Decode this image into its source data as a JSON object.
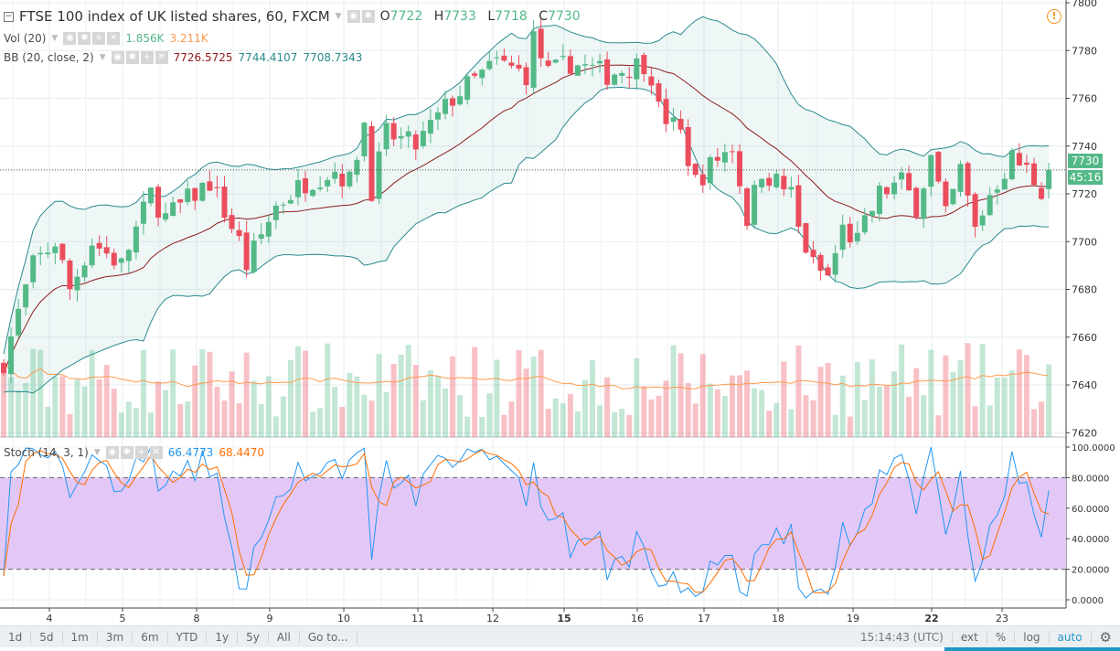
{
  "header": {
    "symbol_title": "FTSE 100 index of UK listed shares, 60, FXCM",
    "open_label": "O",
    "open": "7722",
    "high_label": "H",
    "high": "7733",
    "low_label": "L",
    "low": "7718",
    "close_label": "C",
    "close": "7730"
  },
  "indicators": {
    "vol": {
      "label": "Vol (20)",
      "value1": "1.856K",
      "value2": "3.211K"
    },
    "bb": {
      "label": "BB (20, close, 2)",
      "basis": "7726.5725",
      "upper": "7744.4107",
      "lower": "7708.7343"
    },
    "stoch": {
      "label": "Stoch (14, 3, 1)",
      "k": "66.4773",
      "d": "68.4470"
    }
  },
  "price_axis": {
    "labels": [
      "7800",
      "7780",
      "7760",
      "7740",
      "7720",
      "7700",
      "7680",
      "7660",
      "7640",
      "7620"
    ],
    "last_price": "7730",
    "countdown": "45:16"
  },
  "stoch_axis": {
    "labels": [
      "100.0000",
      "80.0000",
      "60.0000",
      "40.0000",
      "20.0000",
      "0.0000"
    ]
  },
  "time_axis": {
    "labels": [
      {
        "t": "4"
      },
      {
        "t": "5"
      },
      {
        "t": "8"
      },
      {
        "t": "9"
      },
      {
        "t": "10"
      },
      {
        "t": "11"
      },
      {
        "t": "12"
      },
      {
        "t": "15",
        "bold": true
      },
      {
        "t": "16"
      },
      {
        "t": "17"
      },
      {
        "t": "18"
      },
      {
        "t": "19"
      },
      {
        "t": "22",
        "bold": true
      },
      {
        "t": "23"
      }
    ]
  },
  "toolbar": {
    "ranges": [
      "1d",
      "5d",
      "1m",
      "3m",
      "6m",
      "YTD",
      "1y",
      "5y",
      "All"
    ],
    "goto": "Go to...",
    "clock": "15:14:43 (UTC)",
    "ext": "ext",
    "percent": "%",
    "log": "log",
    "auto": "auto"
  },
  "colors": {
    "up": "#53b987",
    "down": "#eb4d5c",
    "bb_line": "#2a8a8f",
    "bb_basis": "#8e1c1c",
    "stoch_k": "#2196f3",
    "stoch_d": "#ff6d00",
    "stoch_band": "#e3c8f7",
    "accent": "#2196c8"
  },
  "chart_data": {
    "type": "candlestick",
    "timeframe": "60",
    "ylim": [
      7620,
      7800
    ],
    "stoch_ylim": [
      0,
      100
    ],
    "price_path": [
      [
        0,
        7650
      ],
      [
        2,
        7670
      ],
      [
        4,
        7690
      ],
      [
        7,
        7700
      ],
      [
        9,
        7680
      ],
      [
        12,
        7700
      ],
      [
        16,
        7690
      ],
      [
        20,
        7720
      ],
      [
        22,
        7710
      ],
      [
        28,
        7725
      ],
      [
        32,
        7700
      ],
      [
        33,
        7690
      ],
      [
        37,
        7715
      ],
      [
        41,
        7725
      ],
      [
        45,
        7730
      ],
      [
        47,
        7725
      ],
      [
        49,
        7750
      ],
      [
        50,
        7722
      ],
      [
        52,
        7745
      ],
      [
        56,
        7740
      ],
      [
        58,
        7748
      ],
      [
        61,
        7760
      ],
      [
        63,
        7765
      ],
      [
        67,
        7775
      ],
      [
        71,
        7770
      ],
      [
        72,
        7785
      ],
      [
        74,
        7770
      ],
      [
        77,
        7775
      ],
      [
        82,
        7770
      ],
      [
        87,
        7775
      ],
      [
        88,
        7770
      ],
      [
        89,
        7755
      ],
      [
        92,
        7745
      ],
      [
        94,
        7725
      ],
      [
        97,
        7735
      ],
      [
        99,
        7740
      ],
      [
        101,
        7710
      ],
      [
        103,
        7730
      ],
      [
        107,
        7720
      ],
      [
        108,
        7705
      ],
      [
        110,
        7690
      ],
      [
        112,
        7685
      ],
      [
        114,
        7705
      ],
      [
        116,
        7700
      ],
      [
        119,
        7720
      ],
      [
        122,
        7725
      ],
      [
        124,
        7715
      ],
      [
        126,
        7735
      ],
      [
        128,
        7710
      ],
      [
        130,
        7730
      ],
      [
        132,
        7705
      ],
      [
        134,
        7720
      ],
      [
        137,
        7735
      ],
      [
        139,
        7730
      ],
      [
        141,
        7722
      ],
      [
        142,
        7730
      ]
    ],
    "volume_ylim": [
      0,
      3500
    ]
  }
}
